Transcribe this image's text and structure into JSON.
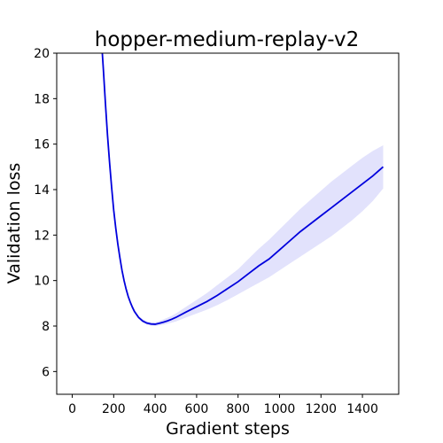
{
  "chart_data": {
    "type": "line",
    "title": "hopper-medium-replay-v2",
    "xlabel": "Gradient steps",
    "ylabel": "Validation loss",
    "xlim": [
      -75,
      1575
    ],
    "ylim": [
      5,
      20
    ],
    "xticks": [
      "0",
      "200",
      "400",
      "600",
      "800",
      "1000",
      "1200",
      "1400"
    ],
    "yticks": [
      "6",
      "8",
      "10",
      "12",
      "14",
      "16",
      "18",
      "20"
    ],
    "grid": false,
    "legend": "none",
    "line_color": "#0000dd",
    "band_color": "#e2e2fc",
    "series": [
      {
        "x": [
          145,
          150,
          160,
          170,
          180,
          190,
          200,
          210,
          220,
          230,
          240,
          250,
          260,
          270,
          280,
          290,
          300,
          320,
          340,
          360,
          380,
          400,
          420,
          440,
          460,
          480,
          500,
          550,
          600,
          650,
          700,
          750,
          800,
          850,
          900,
          950,
          1000,
          1050,
          1100,
          1150,
          1200,
          1250,
          1300,
          1350,
          1400,
          1450,
          1500
        ],
        "y": [
          20.0,
          19.3,
          17.8,
          16.4,
          15.2,
          14.1,
          13.1,
          12.3,
          11.6,
          11.0,
          10.45,
          10.0,
          9.62,
          9.3,
          9.05,
          8.83,
          8.64,
          8.38,
          8.22,
          8.13,
          8.09,
          8.08,
          8.12,
          8.17,
          8.23,
          8.3,
          8.38,
          8.62,
          8.85,
          9.08,
          9.35,
          9.65,
          9.95,
          10.3,
          10.65,
          10.95,
          11.35,
          11.75,
          12.15,
          12.5,
          12.85,
          13.2,
          13.55,
          13.9,
          14.25,
          14.6,
          15.0
        ],
        "lower": [
          20.0,
          19.25,
          17.75,
          16.35,
          15.15,
          14.05,
          13.05,
          12.25,
          11.55,
          10.95,
          10.4,
          9.95,
          9.57,
          9.25,
          9.0,
          8.78,
          8.59,
          8.32,
          8.15,
          8.06,
          8.02,
          8.0,
          8.03,
          8.06,
          8.1,
          8.15,
          8.2,
          8.38,
          8.55,
          8.72,
          8.92,
          9.15,
          9.4,
          9.65,
          9.9,
          10.15,
          10.45,
          10.75,
          11.05,
          11.35,
          11.65,
          11.95,
          12.3,
          12.65,
          13.05,
          13.5,
          14.05
        ],
        "upper": [
          20.0,
          19.35,
          17.85,
          16.45,
          15.25,
          14.15,
          13.15,
          12.35,
          11.65,
          11.05,
          10.5,
          10.05,
          9.67,
          9.35,
          9.1,
          8.88,
          8.7,
          8.45,
          8.3,
          8.21,
          8.17,
          8.17,
          8.22,
          8.29,
          8.37,
          8.45,
          8.55,
          8.85,
          9.15,
          9.45,
          9.8,
          10.15,
          10.5,
          10.95,
          11.4,
          11.8,
          12.25,
          12.7,
          13.15,
          13.55,
          13.95,
          14.35,
          14.7,
          15.05,
          15.4,
          15.7,
          15.95
        ]
      }
    ]
  }
}
